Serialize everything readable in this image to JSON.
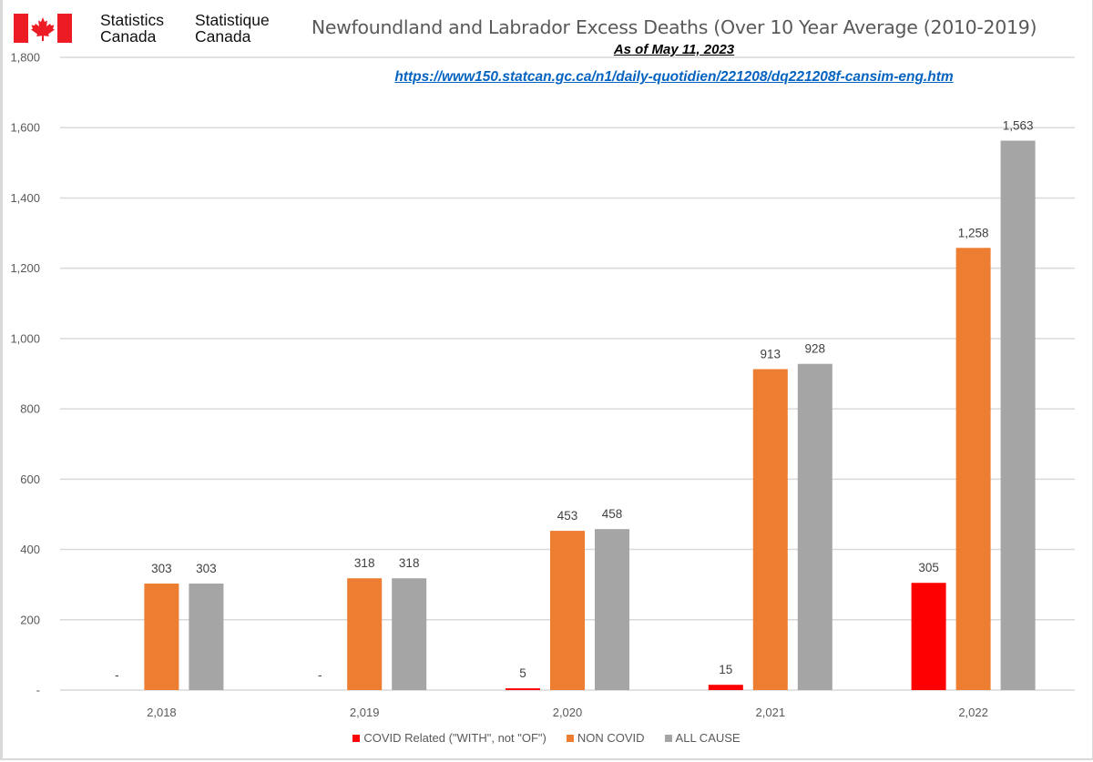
{
  "header": {
    "logo_en_line1": "Statistics",
    "logo_en_line2": "Canada",
    "logo_fr_line1": "Statistique",
    "logo_fr_line2": "Canada",
    "flag_icon": "canada-flag-icon",
    "flag_color": "#ed1c24"
  },
  "chart_data": {
    "type": "bar",
    "title": "Newfoundland and Labrador Excess Deaths (Over 10 Year Average (2010-2019)",
    "subtitle": "As of May 11, 2023",
    "source_url": "https://www150.statcan.gc.ca/n1/daily-quotidien/221208/dq221208f-cansim-eng.htm",
    "xlabel": "",
    "ylabel": "",
    "categories": [
      "2,018",
      "2,019",
      "2,020",
      "2,021",
      "2,022"
    ],
    "series": [
      {
        "name": "COVID Related (\"WITH\", not \"OF\")",
        "color": "#ff0000",
        "values": [
          0,
          0,
          5,
          15,
          305
        ],
        "labels": [
          "-",
          "-",
          "5",
          "15",
          "305"
        ]
      },
      {
        "name": "NON COVID",
        "color": "#ed7d31",
        "values": [
          303,
          318,
          453,
          913,
          1258
        ],
        "labels": [
          "303",
          "318",
          "453",
          "913",
          "1,258"
        ]
      },
      {
        "name": "ALL CAUSE",
        "color": "#a5a5a5",
        "values": [
          303,
          318,
          458,
          928,
          1563
        ],
        "labels": [
          "303",
          "318",
          "458",
          "928",
          "1,563"
        ]
      }
    ],
    "ylim": [
      0,
      1800
    ],
    "yticks": [
      0,
      200,
      400,
      600,
      800,
      1000,
      1200,
      1400,
      1600,
      1800
    ],
    "ytick_labels": [
      "-",
      "200",
      "400",
      "600",
      "800",
      "1,000",
      "1,200",
      "1,400",
      "1,600",
      "1,800"
    ],
    "grid": true,
    "legend_position": "bottom"
  }
}
